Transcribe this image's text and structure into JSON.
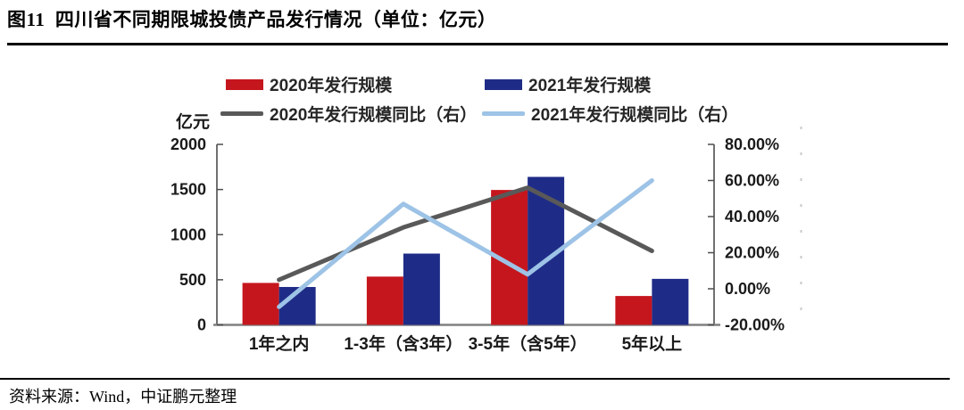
{
  "title": "图11  四川省不同期限城投债产品发行情况（单位：亿元）",
  "source": "资料来源：Wind，中证鹏元整理",
  "chart_data": {
    "type": "bar",
    "subtype": "grouped bars with two overlay lines on secondary axis",
    "categories": [
      "1年之内",
      "1-3年（含3年）",
      "3-5年（含5年）",
      "5年以上"
    ],
    "series": [
      {
        "name": "2020年发行规模",
        "kind": "bar",
        "axis": "left",
        "color": "#C5161D",
        "values": [
          465,
          535,
          1495,
          320
        ]
      },
      {
        "name": "2021年发行规模",
        "kind": "bar",
        "axis": "left",
        "color": "#1F2C87",
        "values": [
          420,
          790,
          1640,
          510
        ]
      },
      {
        "name": "2020年发行规模同比（右）",
        "kind": "line",
        "axis": "right",
        "color": "#595959",
        "values": [
          0.05,
          0.34,
          0.56,
          0.21
        ]
      },
      {
        "name": "2021年发行规模同比（右）",
        "kind": "line",
        "axis": "right",
        "color": "#9DC3E6",
        "values": [
          -0.1,
          0.47,
          0.08,
          0.6
        ]
      }
    ],
    "left_axis": {
      "label": "亿元",
      "min": 0,
      "max": 2000,
      "ticks": [
        0,
        500,
        1000,
        1500,
        2000
      ]
    },
    "right_axis": {
      "min": -0.2,
      "max": 0.8,
      "ticks": [
        -0.2,
        0,
        0.2,
        0.4,
        0.6,
        0.8
      ],
      "tick_labels": [
        "-20.00%",
        "0.00%",
        "20.00%",
        "40.00%",
        "60.00%",
        "80.00%"
      ]
    },
    "legend_position": "top",
    "grid": false
  }
}
